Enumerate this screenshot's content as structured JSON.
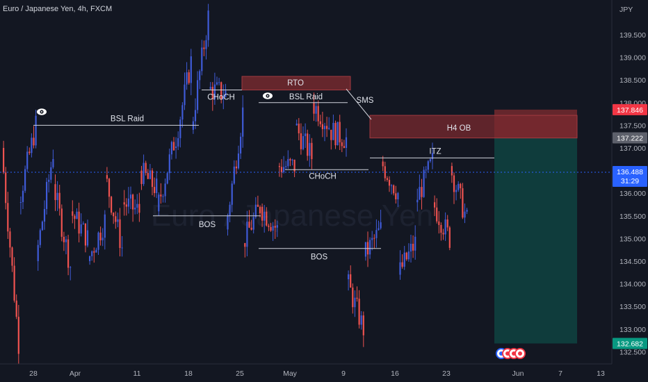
{
  "header": {
    "symbol_title": "Euro / Japanese Yen, 4h, FXCM"
  },
  "watermark": {
    "text": "Euro / Japanese Yen"
  },
  "colors": {
    "background": "#131722",
    "bull": "#3f5bd8",
    "bear": "#ef5350",
    "grid": "#1f2433",
    "axis_text": "#b2b5be",
    "annotation_line": "#d1d4dc",
    "zone_fill": "#7a2a2f",
    "target_fill": "#0f4a45",
    "last_price_bg": "#2962ff",
    "level_red_bg": "#f23645",
    "level_grey_bg": "#5d606b",
    "level_teal_bg": "#089981"
  },
  "chart_data": {
    "type": "candlestick",
    "symbol": "EURJPY",
    "timeframe": "4h",
    "price_axis_unit": "JPY",
    "ylim": [
      132.4,
      140.1
    ],
    "y_ticks": [
      "139.500",
      "139.000",
      "138.500",
      "138.000",
      "137.500",
      "137.000",
      "136.500",
      "136.000",
      "135.500",
      "135.000",
      "134.500",
      "134.000",
      "133.500",
      "133.000",
      "132.500"
    ],
    "x_ticks": [
      "28",
      "Apr",
      "11",
      "18",
      "25",
      "May",
      "9",
      "16",
      "23",
      "Jun",
      "7",
      "13"
    ],
    "last_price": {
      "value": "136.488",
      "countdown": "31:29"
    },
    "price_labels": [
      {
        "value": "137.846",
        "role": "stop-loss"
      },
      {
        "value": "137.222",
        "role": "entry"
      },
      {
        "value": "132.682",
        "role": "take-profit"
      }
    ],
    "ohlc_anchor_path": [
      [
        137.0,
        132.7
      ],
      [
        135.8,
        137.5
      ],
      [
        134.5,
        136.9
      ],
      [
        136.2,
        134.4
      ],
      [
        135.6,
        135.0
      ],
      [
        134.5,
        135.4
      ],
      [
        136.4,
        134.8
      ],
      [
        135.8,
        135.6
      ],
      [
        136.5,
        136.1
      ],
      [
        135.6,
        137.1
      ],
      [
        137.0,
        138.9
      ],
      [
        137.4,
        139.9
      ],
      [
        138.3,
        138.2
      ],
      [
        135.2,
        137.8
      ],
      [
        134.9,
        135.7
      ],
      [
        135.7,
        135.2
      ],
      [
        136.6,
        136.6
      ],
      [
        137.5,
        136.8
      ],
      [
        138.0,
        137.5
      ],
      [
        137.4,
        137.2
      ],
      [
        134.1,
        133.0
      ],
      [
        134.6,
        135.2
      ],
      [
        136.7,
        136.0
      ],
      [
        134.2,
        134.9
      ],
      [
        135.8,
        136.7
      ],
      [
        135.8,
        135.0
      ],
      [
        136.6,
        135.4
      ]
    ],
    "annotations": [
      {
        "label": "BSL Raid",
        "kind": "line",
        "price": 137.5
      },
      {
        "label": "BOS",
        "kind": "line",
        "price": 135.5
      },
      {
        "label": "CHoCH",
        "kind": "line",
        "price": 138.28
      },
      {
        "label": "BSL Raid",
        "kind": "line",
        "price": 138.0
      },
      {
        "label": "CHoCH",
        "kind": "line",
        "price": 136.52
      },
      {
        "label": "BOS",
        "kind": "line",
        "price": 134.78
      },
      {
        "label": "SMS",
        "kind": "text",
        "price": 137.8
      },
      {
        "label": "ITZ",
        "kind": "line",
        "price": 136.78
      },
      {
        "label": "RTO",
        "kind": "zone",
        "price_low": 138.28,
        "price_high": 138.58
      },
      {
        "label": "H4 OB",
        "kind": "zone",
        "price_low": 137.22,
        "price_high": 137.72
      }
    ],
    "position": {
      "type": "short",
      "stop": 137.846,
      "entry": 137.222,
      "target": 132.682
    },
    "grid": false,
    "legend": "none"
  }
}
